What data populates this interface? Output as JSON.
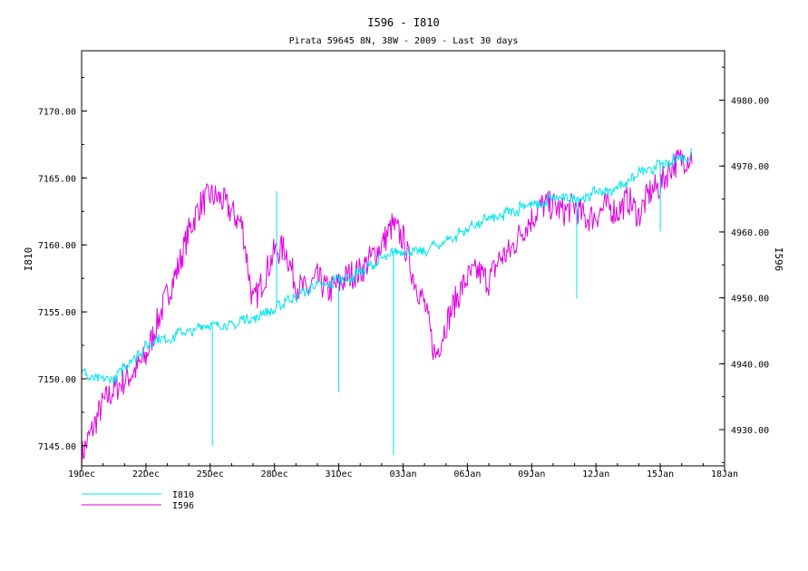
{
  "colors": {
    "I810": "#00e5ee",
    "I596": "#e000e0",
    "axis": "#000000",
    "background": "#ffffff"
  },
  "chart_data": {
    "type": "line",
    "title": "I596 - I810",
    "subtitle": "Pirata 59645 8N, 38W - 2009 - Last 30 days",
    "xlabel": "",
    "ylabel_left": "I810",
    "ylabel_right": "I596",
    "x_tick_labels": [
      "19Dec",
      "22Dec",
      "25Dec",
      "28Dec",
      "31Dec",
      "03Jan",
      "06Jan",
      "09Jan",
      "12Jan",
      "15Jan",
      "18Jan"
    ],
    "x_tick_days": [
      0,
      3,
      6,
      9,
      12,
      15,
      18,
      21,
      24,
      27,
      30
    ],
    "xlim_days": [
      0,
      30
    ],
    "left_axis": {
      "series": "I810",
      "ylim": [
        7143.5,
        7174.5
      ],
      "tick_values": [
        7145,
        7150,
        7155,
        7160,
        7165,
        7170
      ],
      "tick_labels": [
        "7145.00",
        "7150.00",
        "7155.00",
        "7160.00",
        "7165.00",
        "7170.00"
      ]
    },
    "right_axis": {
      "series": "I596",
      "ylim": [
        4924.5,
        4987.5
      ],
      "tick_values": [
        4930,
        4940,
        4950,
        4960,
        4970,
        4980
      ],
      "tick_labels": [
        "4930.00",
        "4940.00",
        "4950.00",
        "4960.00",
        "4970.00",
        "4980.00"
      ]
    },
    "legend": {
      "placement": "bottom-left",
      "entries": [
        "I810",
        "I596"
      ]
    },
    "grid": false,
    "series": [
      {
        "name": "I810",
        "axis": "left",
        "x_days": [
          0,
          0.5,
          1,
          1.5,
          2,
          2.5,
          3,
          3.5,
          4,
          4.5,
          5,
          5.5,
          6,
          6.5,
          7,
          7.5,
          8,
          8.5,
          9,
          9.5,
          10,
          10.5,
          11,
          11.5,
          12,
          12.5,
          13,
          13.5,
          14,
          14.5,
          15,
          15.5,
          16,
          16.5,
          17,
          17.5,
          18,
          18.5,
          19,
          19.5,
          20,
          20.5,
          21,
          21.5,
          22,
          22.5,
          23,
          23.5,
          24,
          24.5,
          25,
          25.5,
          26,
          26.5,
          27,
          27.5,
          28,
          28.5
        ],
        "values": [
          7150.3,
          7150.2,
          7150.0,
          7149.9,
          7151.0,
          7151.6,
          7152.4,
          7152.9,
          7153.1,
          7153.3,
          7153.6,
          7153.8,
          7154.0,
          7154.0,
          7154.1,
          7154.3,
          7154.5,
          7154.9,
          7155.2,
          7155.8,
          7156.1,
          7156.6,
          7157.0,
          7157.1,
          7157.4,
          7157.6,
          7157.9,
          7158.5,
          7158.9,
          7159.3,
          7159.6,
          7159.6,
          7159.7,
          7159.8,
          7160.3,
          7160.7,
          7161.2,
          7161.6,
          7161.9,
          7162.1,
          7162.5,
          7162.8,
          7163.0,
          7163.2,
          7163.3,
          7163.4,
          7163.5,
          7163.7,
          7163.8,
          7164.0,
          7164.3,
          7164.8,
          7165.3,
          7165.6,
          7166.0,
          7166.2,
          7166.5,
          7166.8
        ],
        "spikes": [
          {
            "x_day": 6.1,
            "value": 7145.0
          },
          {
            "x_day": 9.1,
            "value": 7164.0
          },
          {
            "x_day": 12.0,
            "value": 7149.0
          },
          {
            "x_day": 14.55,
            "value": 7144.3
          },
          {
            "x_day": 23.1,
            "value": 7156.0
          },
          {
            "x_day": 27.0,
            "value": 7161.0
          }
        ]
      },
      {
        "name": "I596",
        "axis": "right",
        "x_days": [
          0,
          0.5,
          1,
          1.5,
          2,
          2.5,
          3,
          3.5,
          4,
          4.5,
          5,
          5.5,
          6,
          6.5,
          7,
          7.5,
          8,
          8.5,
          9,
          9.5,
          10,
          10.5,
          11,
          11.5,
          12,
          12.5,
          13,
          13.5,
          14,
          14.5,
          15,
          15.5,
          16,
          16.5,
          17,
          17.5,
          18,
          18.5,
          19,
          19.5,
          20,
          20.5,
          21,
          21.5,
          22,
          22.5,
          23,
          23.5,
          24,
          24.5,
          25,
          25.5,
          26,
          26.5,
          27,
          27.5,
          28,
          28.5
        ],
        "values": [
          4926.0,
          4930.0,
          4934.0,
          4936.0,
          4937.5,
          4939.0,
          4941.0,
          4946.0,
          4950.5,
          4954.5,
          4960.0,
          4964.0,
          4965.5,
          4965.0,
          4963.0,
          4961.0,
          4949.0,
          4953.0,
          4957.0,
          4957.5,
          4952.0,
          4951.0,
          4953.0,
          4951.0,
          4952.0,
          4953.5,
          4954.0,
          4956.0,
          4958.0,
          4961.0,
          4959.0,
          4953.0,
          4949.0,
          4941.0,
          4946.0,
          4950.0,
          4953.0,
          4954.0,
          4952.5,
          4956.0,
          4957.0,
          4960.0,
          4962.0,
          4964.0,
          4964.0,
          4963.0,
          4964.0,
          4962.0,
          4962.5,
          4964.0,
          4963.0,
          4965.0,
          4962.5,
          4966.0,
          4967.0,
          4970.0,
          4971.0,
          4971.5
        ]
      }
    ]
  },
  "legend_labels": {
    "I810": "I810",
    "I596": "I596"
  }
}
